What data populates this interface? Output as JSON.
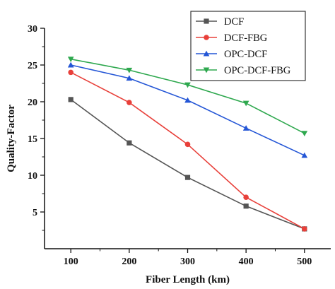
{
  "chart_data": {
    "type": "line",
    "xlabel": "Fiber Length (km)",
    "ylabel": "Quality-Factor",
    "x": [
      100,
      200,
      300,
      400,
      500
    ],
    "x_ticks": [
      "100",
      "200",
      "300",
      "400",
      "500"
    ],
    "y_ticks": [
      "5",
      "10",
      "15",
      "20",
      "25",
      "30"
    ],
    "xlim": [
      55,
      545
    ],
    "ylim": [
      0,
      30
    ],
    "legend_position": "top-right",
    "grid": false,
    "series": [
      {
        "name": "DCF",
        "values": [
          20.3,
          14.4,
          9.7,
          5.8,
          2.7
        ],
        "color": "#555555",
        "marker": "square"
      },
      {
        "name": "DCF-FBG",
        "values": [
          24.0,
          19.9,
          14.2,
          7.0,
          2.7
        ],
        "color": "#e8403a",
        "marker": "circle"
      },
      {
        "name": "OPC-DCF",
        "values": [
          25.0,
          23.2,
          20.2,
          16.4,
          12.7
        ],
        "color": "#2456d6",
        "marker": "triangle-up"
      },
      {
        "name": "OPC-DCF-FBG",
        "values": [
          25.8,
          24.3,
          22.3,
          19.8,
          15.7
        ],
        "color": "#2ea84e",
        "marker": "triangle-down"
      }
    ]
  }
}
